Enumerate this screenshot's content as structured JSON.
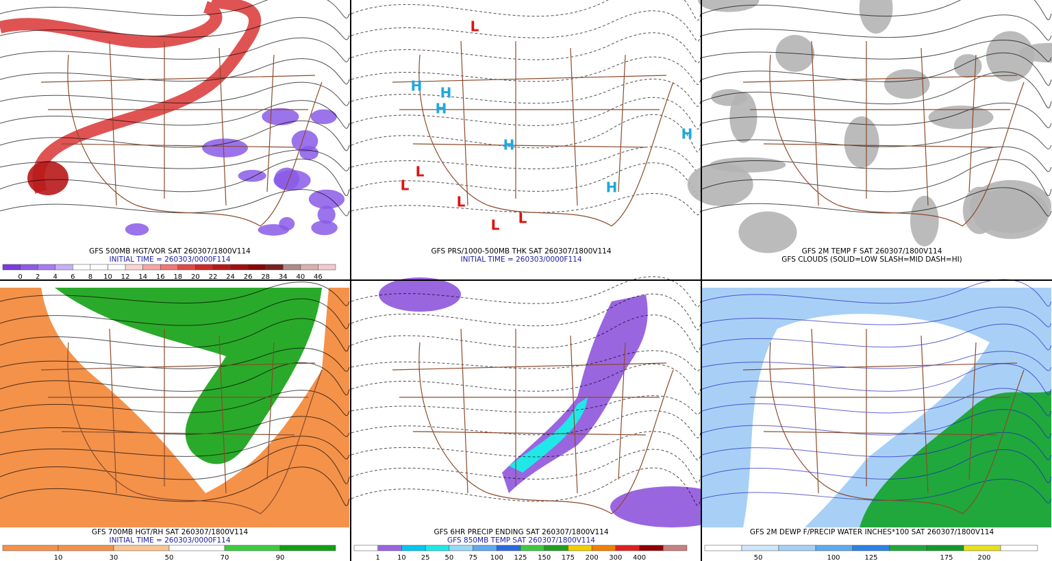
{
  "panels": [
    {
      "caption": "GFS 500MB HGT/VOR SAT 260307/1800V114",
      "subcaption": "INITIAL TIME = 260303/0000F114",
      "colorbar": {
        "labels": [
          0,
          2,
          4,
          6,
          8,
          10,
          12,
          14,
          16,
          18,
          20,
          22,
          24,
          26,
          28,
          34,
          40,
          46
        ],
        "colors": [
          "#7a3ce0",
          "#8e5be6",
          "#a67cf0",
          "#c7aef8",
          "#ffffff",
          "#ffffff",
          "#ffffff",
          "#fbd3d3",
          "#f5a5a5",
          "#ee7777",
          "#e04848",
          "#d02828",
          "#b81818",
          "#a01010",
          "#880808",
          "#7a2020",
          "#b08a8a",
          "#d8b0b0",
          "#f4c8d0"
        ]
      }
    },
    {
      "caption": "GFS PRS/1000-500MB THK SAT 260307/1800V114",
      "subcaption": "INITIAL TIME = 260303/0000F114",
      "symbols": [
        "H",
        "L"
      ]
    },
    {
      "caption": "GFS 2M TEMP F SAT 260307/1800V114",
      "subcaption": "GFS CLOUDS (SOLID=LOW SLASH=MID DASH=HI)"
    },
    {
      "caption": "GFS 700MB HGT/RH SAT 260307/1800V114",
      "subcaption": "INITIAL TIME = 260303/0000F114",
      "colorbar": {
        "labels": [
          10,
          30,
          50,
          70,
          90
        ],
        "colors": [
          "#f4924a",
          "#f4924a",
          "#f9c592",
          "#ffffff",
          "#3ccc3c",
          "#12a012"
        ]
      }
    },
    {
      "caption": "GFS 6HR PRECIP ENDING SAT 260307/1800V114",
      "subcaption": "GFS 850MB TEMP SAT 260307/1800V114",
      "colorbar": {
        "labels": [
          1,
          10,
          25,
          50,
          75,
          100,
          125,
          150,
          175,
          200,
          300,
          400
        ],
        "colors": [
          "#ffffff",
          "#9a66e0",
          "#00c8f0",
          "#20e8e8",
          "#9bd8f8",
          "#60a8f0",
          "#2a6ae0",
          "#40c840",
          "#20a020",
          "#f0d000",
          "#f08000",
          "#e02020",
          "#900000",
          "#c88080"
        ]
      }
    },
    {
      "caption": "GFS 2M DEWP F/PRECIP WATER INCHES*100 SAT 260307/1800V114",
      "colorbar": {
        "labels": [
          50,
          100,
          125,
          175,
          200
        ],
        "colors": [
          "#ffffff",
          "#cfe6fb",
          "#a8d0f6",
          "#5eaaf0",
          "#2c82e6",
          "#20a83c",
          "#119a28",
          "#e8e020",
          "#ffffff"
        ]
      }
    }
  ]
}
